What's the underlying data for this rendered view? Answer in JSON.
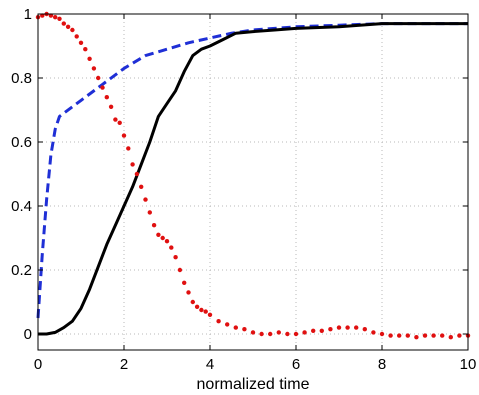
{
  "chart_data": {
    "type": "line",
    "title": "",
    "xlabel": "normalized time",
    "ylabel": "",
    "xlim": [
      0,
      10
    ],
    "ylim": [
      -0.05,
      1
    ],
    "xticks": [
      0,
      2,
      4,
      6,
      8,
      10
    ],
    "yticks": [
      0,
      0.2,
      0.4,
      0.6,
      0.8,
      1
    ],
    "xtick_labels": [
      "0",
      "2",
      "4",
      "6",
      "8",
      "10"
    ],
    "ytick_labels": [
      "0",
      "0.2",
      "0.4",
      "0.6",
      "0.8",
      "1"
    ],
    "grid": true,
    "legend": "none",
    "series": [
      {
        "style": "dashed",
        "color": "#1f2fd6",
        "x": [
          0,
          0.1,
          0.2,
          0.3,
          0.4,
          0.5,
          0.6,
          1.0,
          1.5,
          2.0,
          2.5,
          3.0,
          3.5,
          4.0,
          4.5,
          5.0,
          6.0,
          7.0,
          8.0,
          10.0
        ],
        "y": [
          0.05,
          0.25,
          0.42,
          0.56,
          0.64,
          0.68,
          0.69,
          0.73,
          0.78,
          0.83,
          0.87,
          0.89,
          0.91,
          0.925,
          0.94,
          0.95,
          0.96,
          0.965,
          0.97,
          0.97
        ]
      },
      {
        "style": "solid",
        "color": "#000000",
        "x": [
          0,
          0.2,
          0.4,
          0.6,
          0.8,
          1.0,
          1.2,
          1.4,
          1.6,
          1.8,
          2.0,
          2.2,
          2.4,
          2.6,
          2.8,
          3.0,
          3.2,
          3.4,
          3.6,
          3.8,
          4.0,
          4.3,
          4.6,
          5.0,
          5.5,
          6.0,
          7.0,
          8.0,
          10.0
        ],
        "y": [
          0,
          0,
          0.005,
          0.02,
          0.04,
          0.08,
          0.14,
          0.21,
          0.28,
          0.34,
          0.4,
          0.46,
          0.53,
          0.6,
          0.68,
          0.72,
          0.76,
          0.82,
          0.87,
          0.89,
          0.9,
          0.92,
          0.94,
          0.945,
          0.95,
          0.955,
          0.96,
          0.97,
          0.97
        ]
      },
      {
        "style": "dotted",
        "color": "#e01010",
        "x": [
          0.0,
          0.1,
          0.2,
          0.3,
          0.4,
          0.5,
          0.6,
          0.7,
          0.8,
          0.9,
          1.0,
          1.1,
          1.2,
          1.3,
          1.4,
          1.5,
          1.6,
          1.7,
          1.8,
          1.9,
          2.0,
          2.1,
          2.2,
          2.3,
          2.4,
          2.5,
          2.6,
          2.7,
          2.8,
          2.9,
          3.0,
          3.1,
          3.2,
          3.3,
          3.4,
          3.5,
          3.6,
          3.7,
          3.8,
          3.9,
          4.0,
          4.2,
          4.4,
          4.6,
          4.8,
          5.0,
          5.2,
          5.4,
          5.6,
          5.8,
          6.0,
          6.2,
          6.4,
          6.6,
          6.8,
          7.0,
          7.2,
          7.4,
          7.6,
          7.8,
          8.0,
          8.2,
          8.4,
          8.6,
          8.8,
          9.0,
          9.2,
          9.4,
          9.6,
          9.8,
          10.0
        ],
        "y": [
          0.99,
          0.995,
          1.0,
          0.995,
          0.99,
          0.985,
          0.97,
          0.96,
          0.95,
          0.93,
          0.91,
          0.89,
          0.86,
          0.83,
          0.8,
          0.77,
          0.74,
          0.71,
          0.67,
          0.66,
          0.62,
          0.58,
          0.53,
          0.5,
          0.46,
          0.42,
          0.38,
          0.34,
          0.31,
          0.3,
          0.29,
          0.27,
          0.24,
          0.2,
          0.16,
          0.13,
          0.1,
          0.085,
          0.075,
          0.07,
          0.06,
          0.04,
          0.03,
          0.02,
          0.015,
          0.005,
          0.0,
          0.0,
          0.005,
          0.0,
          0.0,
          0.005,
          0.01,
          0.01,
          0.015,
          0.02,
          0.02,
          0.02,
          0.015,
          0.005,
          0.0,
          -0.005,
          -0.005,
          -0.005,
          -0.01,
          -0.005,
          -0.005,
          -0.005,
          -0.01,
          -0.005,
          -0.005
        ]
      }
    ]
  }
}
